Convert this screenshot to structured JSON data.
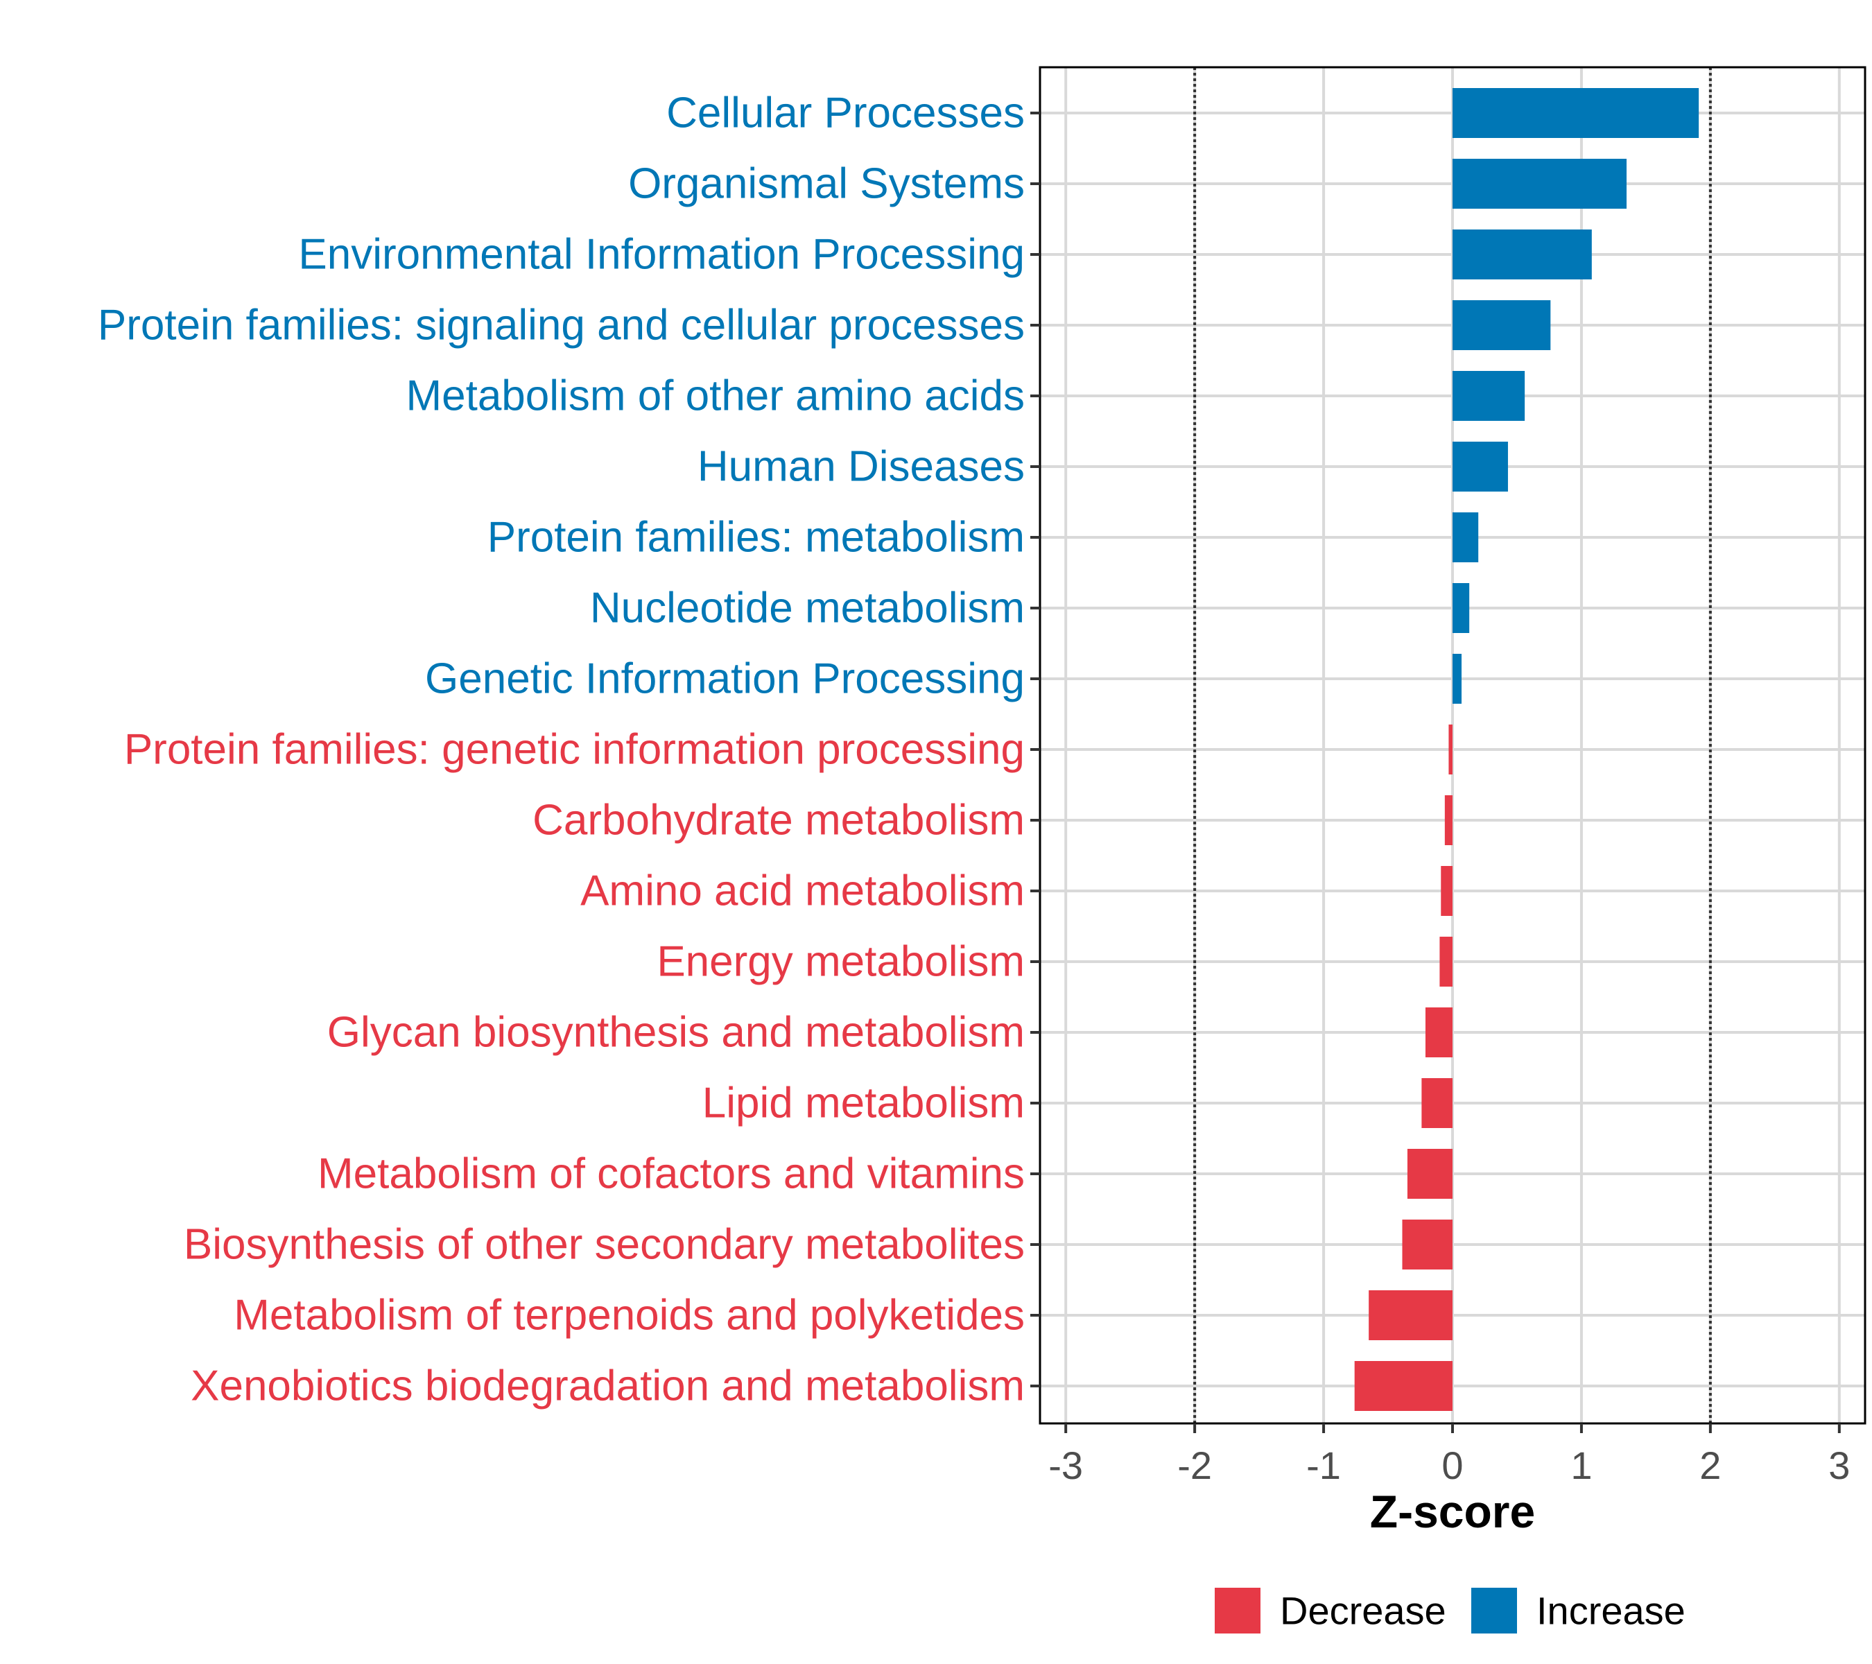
{
  "chart_data": {
    "type": "bar",
    "orientation": "horizontal",
    "xlabel": "Z-score",
    "ylabel": "",
    "xlim": [
      -3.2,
      3.2
    ],
    "xticks": [
      -3,
      -2,
      -1,
      0,
      1,
      2,
      3
    ],
    "reference_lines": [
      -2,
      2
    ],
    "grid": true,
    "legend_position": "bottom",
    "categories": [
      "Cellular Processes",
      "Organismal Systems",
      "Environmental Information Processing",
      "Protein families: signaling and cellular processes",
      "Metabolism of other amino acids",
      "Human Diseases",
      "Protein families: metabolism",
      "Nucleotide metabolism",
      "Genetic Information Processing",
      "Protein families: genetic information processing",
      "Carbohydrate metabolism",
      "Amino acid metabolism",
      "Energy metabolism",
      "Glycan biosynthesis and metabolism",
      "Lipid metabolism",
      "Metabolism of cofactors and vitamins",
      "Biosynthesis of other secondary metabolites",
      "Metabolism of terpenoids and polyketides",
      "Xenobiotics biodegradation and metabolism"
    ],
    "values": [
      1.91,
      1.35,
      1.08,
      0.76,
      0.56,
      0.43,
      0.2,
      0.13,
      0.07,
      -0.03,
      -0.06,
      -0.09,
      -0.1,
      -0.21,
      -0.24,
      -0.35,
      -0.39,
      -0.65,
      -0.76
    ],
    "groups": [
      "Increase",
      "Increase",
      "Increase",
      "Increase",
      "Increase",
      "Increase",
      "Increase",
      "Increase",
      "Increase",
      "Decrease",
      "Decrease",
      "Decrease",
      "Decrease",
      "Decrease",
      "Decrease",
      "Decrease",
      "Decrease",
      "Decrease",
      "Decrease"
    ],
    "colors": {
      "Decrease": "#e63946",
      "Increase": "#0077b6"
    },
    "legend": [
      {
        "name": "Decrease",
        "color": "#e63946"
      },
      {
        "name": "Increase",
        "color": "#0077b6"
      }
    ]
  }
}
